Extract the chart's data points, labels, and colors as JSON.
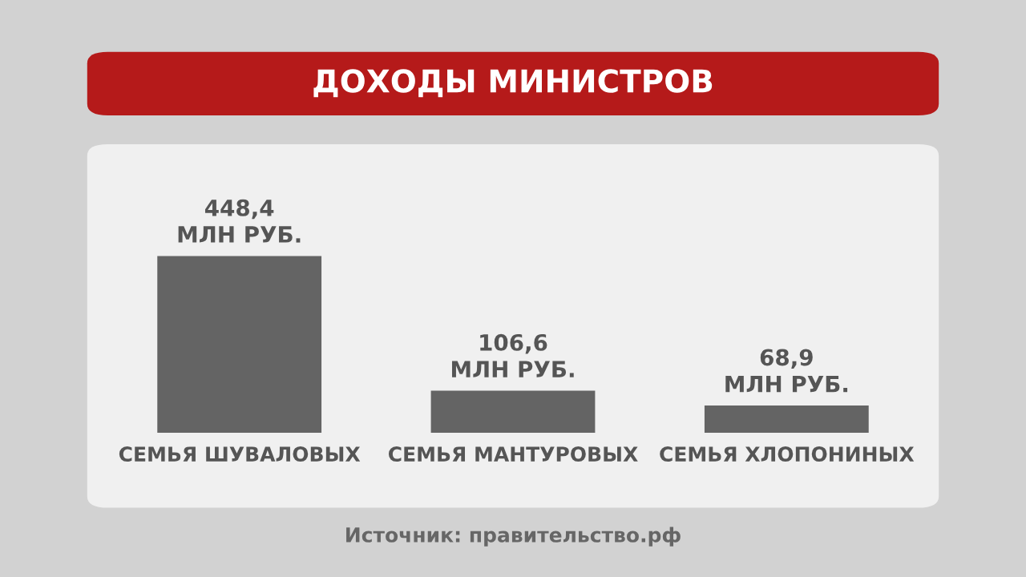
{
  "chart_data": {
    "type": "bar",
    "title": "ДОХОДЫ МИНИСТРОВ",
    "categories": [
      "СЕМЬЯ ШУВАЛОВЫХ",
      "СЕМЬЯ МАНТУРОВЫХ",
      "СЕМЬЯ ХЛОПОНИНЫХ"
    ],
    "values": [
      448.4,
      106.6,
      68.9
    ],
    "value_labels": [
      "448,4\nМЛН РУБ.",
      "106,6\nМЛН РУБ.",
      "68,9\nМЛН РУБ."
    ],
    "color": "#646464",
    "annotations": [
      "Источник: правительство.рф"
    ]
  }
}
